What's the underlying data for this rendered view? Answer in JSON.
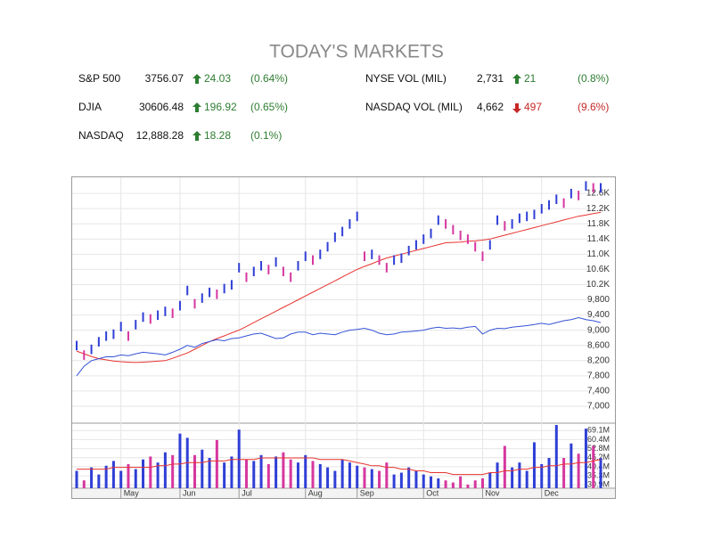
{
  "header": {
    "title": "TODAY'S MARKETS"
  },
  "markets": [
    {
      "name": "S&P 500",
      "value": "3756.07",
      "change": "24.03",
      "percent": "(0.64%)",
      "direction": "up"
    },
    {
      "name": "DJIA",
      "value": "30606.48",
      "change": "196.92",
      "percent": "(0.65%)",
      "direction": "up"
    },
    {
      "name": "NASDAQ",
      "value": "12,888.28",
      "change": "18.28",
      "percent": "(0.1%)",
      "direction": "up"
    },
    {
      "name": "NYSE VOL (MIL)",
      "value": "2,731",
      "change": "21",
      "percent": "(0.8%)",
      "direction": "up"
    },
    {
      "name": "NASDAQ VOL (MIL)",
      "value": "4,662",
      "change": "497",
      "percent": "(9.6%)",
      "direction": "down"
    }
  ],
  "chart_data": {
    "type": "stock",
    "categories": [
      null,
      null,
      null,
      null,
      null,
      null,
      "May",
      null,
      null,
      null,
      null,
      null,
      null,
      null,
      "Jun",
      null,
      null,
      null,
      null,
      null,
      null,
      null,
      "Jul",
      null,
      null,
      null,
      null,
      null,
      null,
      null,
      null,
      "Aug",
      null,
      null,
      null,
      null,
      null,
      null,
      "Sep",
      null,
      null,
      null,
      null,
      null,
      null,
      null,
      null,
      "Oct",
      null,
      null,
      null,
      null,
      null,
      null,
      null,
      "Nov",
      null,
      null,
      null,
      null,
      null,
      null,
      null,
      "Dec",
      null,
      null,
      null,
      null,
      null,
      null,
      null,
      null
    ],
    "high": [
      8720,
      8470,
      8620,
      8820,
      8970,
      9020,
      9220,
      8970,
      9270,
      9470,
      9420,
      9520,
      9620,
      9570,
      9770,
      10170,
      9820,
      9970,
      10120,
      10070,
      10220,
      10320,
      10770,
      10520,
      10670,
      10820,
      10720,
      10920,
      10670,
      10520,
      10820,
      11070,
      10970,
      11120,
      11320,
      11570,
      11720,
      11920,
      12120,
      11070,
      11120,
      10970,
      10770,
      10970,
      11020,
      11220,
      11370,
      11520,
      11670,
      12020,
      11920,
      11770,
      11620,
      11520,
      11320,
      11070,
      11370,
      12020,
      11870,
      11920,
      12070,
      12120,
      12170,
      12320,
      12420,
      12570,
      12470,
      12720,
      12670,
      12920,
      12870,
      12870
    ],
    "low": [
      8470,
      8220,
      8370,
      8570,
      8720,
      8770,
      8970,
      8720,
      9020,
      9220,
      9170,
      9270,
      9370,
      9320,
      9520,
      9920,
      9570,
      9720,
      9870,
      9820,
      9970,
      10070,
      10520,
      10270,
      10420,
      10570,
      10470,
      10670,
      10420,
      10270,
      10570,
      10820,
      10720,
      10870,
      11070,
      11320,
      11470,
      11670,
      11870,
      10820,
      10870,
      10720,
      10520,
      10720,
      10770,
      10970,
      11120,
      11270,
      11420,
      11770,
      11670,
      11520,
      11370,
      11270,
      11070,
      10820,
      11120,
      11770,
      11620,
      11670,
      11820,
      11870,
      11920,
      12070,
      12170,
      12320,
      12220,
      12470,
      12420,
      12670,
      12620,
      12620
    ],
    "moving_average": [
      8450,
      8380,
      8310,
      8250,
      8220,
      8190,
      8170,
      8160,
      8150,
      8160,
      8170,
      8185,
      8200,
      8260,
      8330,
      8400,
      8500,
      8600,
      8700,
      8780,
      8850,
      8930,
      9000,
      9100,
      9200,
      9300,
      9400,
      9500,
      9600,
      9700,
      9800,
      9900,
      10000,
      10100,
      10200,
      10300,
      10400,
      10500,
      10600,
      10680,
      10750,
      10830,
      10900,
      10950,
      11000,
      11050,
      11100,
      11150,
      11200,
      11250,
      11300,
      11310,
      11320,
      11340,
      11350,
      11370,
      11400,
      11450,
      11500,
      11550,
      11600,
      11650,
      11700,
      11750,
      11800,
      11850,
      11900,
      11950,
      12000,
      12030,
      12070,
      12100
    ],
    "relative_strength": [
      7800,
      8050,
      8200,
      8250,
      8300,
      8300,
      8350,
      8330,
      8380,
      8420,
      8400,
      8380,
      8350,
      8420,
      8500,
      8600,
      8550,
      8650,
      8700,
      8750,
      8720,
      8780,
      8800,
      8850,
      8900,
      8920,
      8850,
      8780,
      8800,
      8900,
      8950,
      8950,
      8880,
      8920,
      8900,
      8880,
      8950,
      9000,
      9020,
      9050,
      9000,
      8920,
      8880,
      8900,
      8950,
      8960,
      8980,
      9000,
      9050,
      9080,
      9050,
      9060,
      9040,
      9080,
      9100,
      8900,
      9000,
      9050,
      9040,
      9080,
      9100,
      9120,
      9150,
      9180,
      9150,
      9200,
      9250,
      9280,
      9330,
      9280,
      9250,
      9200
    ],
    "volume": [
      38,
      33,
      40,
      36,
      41,
      44,
      38,
      42,
      39,
      45,
      47,
      43,
      50,
      48,
      66,
      62,
      48,
      52,
      46,
      60,
      43,
      47,
      70,
      45,
      44,
      48,
      42,
      47,
      50,
      45,
      43,
      48,
      44,
      42,
      40,
      38,
      45,
      43,
      41,
      40,
      39,
      38,
      43,
      36,
      37,
      40,
      38,
      36,
      35,
      34,
      33,
      32,
      35,
      31,
      33,
      34,
      37,
      43,
      55,
      40,
      43,
      38,
      58,
      42,
      46,
      75,
      46,
      57,
      49,
      71,
      55,
      46
    ],
    "volume_average": [
      39,
      39,
      39,
      39,
      39,
      40,
      40,
      40,
      40,
      40,
      40,
      41,
      41,
      42,
      42,
      43,
      43,
      43,
      44,
      44,
      44,
      45,
      45,
      45,
      45,
      46,
      46,
      46,
      46,
      46,
      46,
      46,
      46,
      45,
      45,
      45,
      45,
      44,
      43,
      42,
      41,
      41,
      40,
      40,
      39,
      39,
      38,
      38,
      37,
      37,
      37,
      36,
      36,
      36,
      36,
      36,
      37,
      37,
      38,
      38,
      39,
      39,
      40,
      40,
      41,
      41,
      42,
      42,
      43,
      43,
      44,
      45
    ],
    "ylim": [
      6600,
      13000
    ],
    "yticks": [
      {
        "value": 7000,
        "label": "7,000"
      },
      {
        "value": 7400,
        "label": "7,400"
      },
      {
        "value": 7800,
        "label": "7,800"
      },
      {
        "value": 8200,
        "label": "8,200"
      },
      {
        "value": 8600,
        "label": "8,600"
      },
      {
        "value": 9000,
        "label": "9,000"
      },
      {
        "value": 9400,
        "label": "9,400"
      },
      {
        "value": 9800,
        "label": "9,800"
      },
      {
        "value": 10200,
        "label": "10.2K"
      },
      {
        "value": 10600,
        "label": "10.6K"
      },
      {
        "value": 11000,
        "label": "11.0K"
      },
      {
        "value": 11400,
        "label": "11.4K"
      },
      {
        "value": 11800,
        "label": "11.8K"
      },
      {
        "value": 12200,
        "label": "12.2K"
      },
      {
        "value": 12600,
        "label": "12.6K"
      }
    ],
    "volume_ylim": [
      29,
      75
    ],
    "volume_log_scale": true,
    "volume_yticks": [
      {
        "value": 30.9,
        "label": "30.9M"
      },
      {
        "value": 35.3,
        "label": "35.3M"
      },
      {
        "value": 40.4,
        "label": "40.4M"
      },
      {
        "value": 46.2,
        "label": "46.2M"
      },
      {
        "value": 52.8,
        "label": "52.8M"
      },
      {
        "value": 60.4,
        "label": "60.4M"
      },
      {
        "value": 69.1,
        "label": "69.1M"
      }
    ],
    "grid": true,
    "up_color": "#2f3fd6",
    "down_color": "#d6379f",
    "moving_average_color": "#e8332f",
    "relative_strength_color": "#3553d6",
    "volume_average_color": "#e8332f"
  }
}
